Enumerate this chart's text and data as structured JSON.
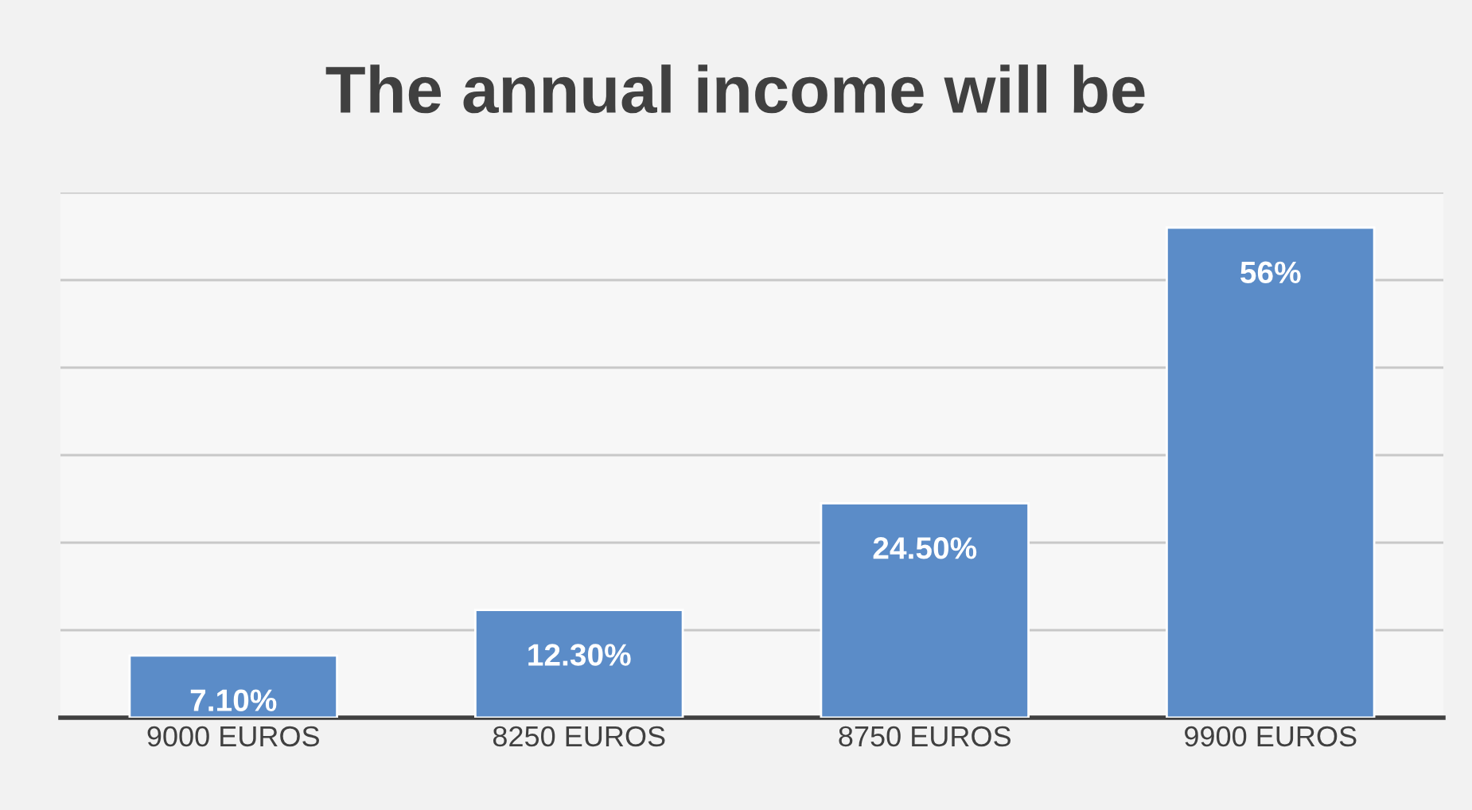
{
  "chart_data": {
    "type": "bar",
    "title": "The annual income will be",
    "categories": [
      "9000 EUROS",
      "8250 EUROS",
      "8750 EUROS",
      "9900 EUROS"
    ],
    "values": [
      7.1,
      12.3,
      24.5,
      56
    ],
    "value_labels": [
      "7.10%",
      "12.30%",
      "24.50%",
      "56%"
    ],
    "color": "#5b8cc8",
    "ylim": [
      0,
      60
    ],
    "yticks": [
      {
        "value": 0,
        "label": null
      },
      {
        "value": 10,
        "label": null
      },
      {
        "value": 20,
        "label": null
      },
      {
        "value": 30,
        "label": null
      },
      {
        "value": 40,
        "label": null
      },
      {
        "value": 50,
        "label": null
      },
      {
        "value": 60,
        "label": null
      }
    ],
    "grid": "y",
    "tick_labels": "x"
  }
}
